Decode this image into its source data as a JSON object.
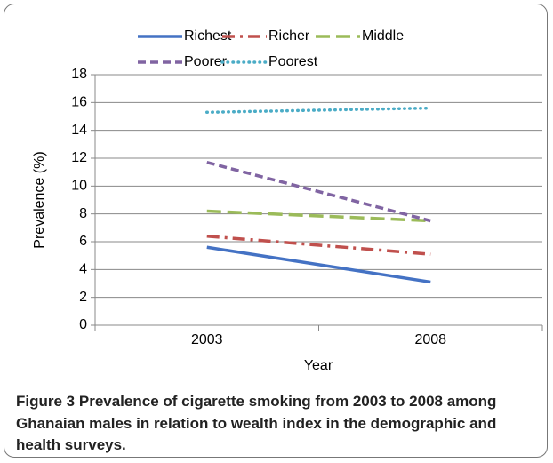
{
  "chart_data": {
    "type": "line",
    "x_label": "Year",
    "y_label": "Prevalence (%)",
    "categories": [
      "2003",
      "2008"
    ],
    "series": [
      {
        "name": "Richest",
        "color": "#4472c4",
        "linestyle": "solid",
        "values": [
          5.6,
          3.1
        ]
      },
      {
        "name": "Richer",
        "color": "#c0504d",
        "linestyle": "dashdot",
        "values": [
          6.4,
          5.1
        ]
      },
      {
        "name": "Middle",
        "color": "#9bbb59",
        "linestyle": "longdash",
        "values": [
          8.2,
          7.5
        ]
      },
      {
        "name": "Poorer",
        "color": "#8064a2",
        "linestyle": "dashed",
        "values": [
          11.7,
          7.5
        ]
      },
      {
        "name": "Poorest",
        "color": "#4bacc6",
        "linestyle": "dotted",
        "values": [
          15.3,
          15.6
        ]
      }
    ],
    "ylim": [
      0,
      18
    ],
    "yticks": [
      0,
      2,
      4,
      6,
      8,
      10,
      12,
      14,
      16,
      18
    ],
    "grid": true,
    "legend": "top"
  },
  "caption": {
    "label": "Figure 3",
    "text": "Prevalence of cigarette smoking from 2003 to 2008 among Ghanaian males in relation to wealth index in the demographic and health surveys."
  }
}
